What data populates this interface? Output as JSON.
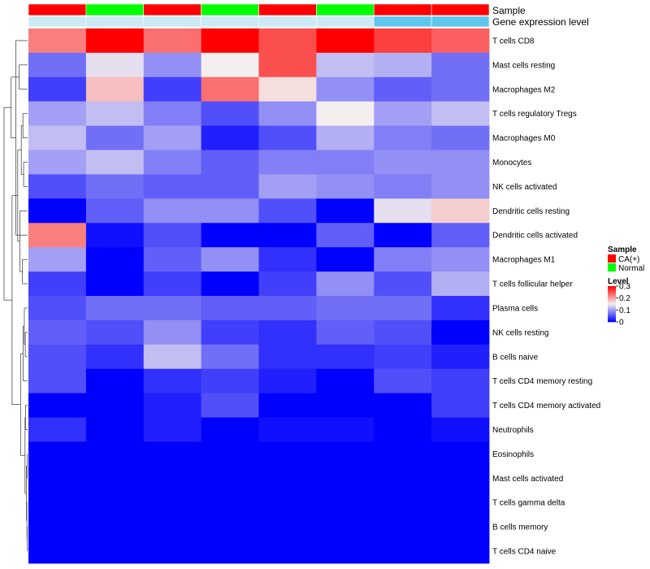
{
  "chart_data": {
    "type": "heatmap",
    "annotation_labels": [
      "Sample",
      "Gene expression level"
    ],
    "sample_groups": [
      "CA(+)",
      "Normal",
      "CA(+)",
      "Normal",
      "CA(+)",
      "Normal",
      "CA(+)",
      "CA(+)"
    ],
    "expression_level": [
      "low",
      "low",
      "low",
      "low",
      "low",
      "low",
      "high",
      "high"
    ],
    "rows": [
      "T cells CD8",
      "Mast cells resting",
      "Macrophages M2",
      "T cells regulatory  Tregs",
      "Macrophages M0",
      "Monocytes",
      "NK cells activated",
      "Dendritic cells resting",
      "Dendritic cells activated",
      "Macrophages M1",
      "T cells follicular helper",
      "Plasma cells",
      "NK cells resting",
      "B cells naive",
      "T cells CD4 memory resting",
      "T cells CD4 memory activated",
      "Neutrophils",
      "Eosinophils",
      "Mast cells activated",
      "T cells gamma delta",
      "B cells memory",
      "T cells CD4 naive"
    ],
    "values": [
      [
        0.22,
        0.3,
        0.23,
        0.3,
        0.25,
        0.3,
        0.26,
        0.24
      ],
      [
        0.07,
        0.14,
        0.09,
        0.15,
        0.25,
        0.12,
        0.11,
        0.07
      ],
      [
        0.04,
        0.18,
        0.04,
        0.23,
        0.16,
        0.09,
        0.06,
        0.07
      ],
      [
        0.1,
        0.12,
        0.08,
        0.05,
        0.09,
        0.15,
        0.1,
        0.12
      ],
      [
        0.12,
        0.07,
        0.1,
        0.02,
        0.05,
        0.11,
        0.08,
        0.07
      ],
      [
        0.1,
        0.12,
        0.08,
        0.06,
        0.08,
        0.08,
        0.09,
        0.09
      ],
      [
        0.05,
        0.07,
        0.06,
        0.06,
        0.1,
        0.09,
        0.08,
        0.09
      ],
      [
        0.0,
        0.06,
        0.09,
        0.09,
        0.05,
        0.0,
        0.14,
        0.17
      ],
      [
        0.22,
        0.01,
        0.05,
        0.0,
        0.0,
        0.06,
        0.0,
        0.06
      ],
      [
        0.1,
        0.0,
        0.06,
        0.09,
        0.03,
        0.0,
        0.08,
        0.09
      ],
      [
        0.04,
        0.0,
        0.04,
        0.0,
        0.04,
        0.09,
        0.05,
        0.11
      ],
      [
        0.05,
        0.07,
        0.07,
        0.06,
        0.06,
        0.07,
        0.07,
        0.03
      ],
      [
        0.06,
        0.05,
        0.09,
        0.04,
        0.03,
        0.06,
        0.05,
        0.0
      ],
      [
        0.05,
        0.03,
        0.12,
        0.07,
        0.03,
        0.03,
        0.04,
        0.02
      ],
      [
        0.05,
        0.0,
        0.03,
        0.04,
        0.02,
        0.0,
        0.05,
        0.04
      ],
      [
        0.0,
        0.0,
        0.02,
        0.05,
        0.0,
        0.0,
        0.0,
        0.04
      ],
      [
        0.03,
        0.0,
        0.02,
        0.0,
        0.01,
        0.01,
        0.0,
        0.01
      ],
      [
        0.0,
        0.0,
        0.0,
        0.0,
        0.0,
        0.0,
        0.0,
        0.0
      ],
      [
        0.0,
        0.0,
        0.0,
        0.0,
        0.0,
        0.0,
        0.0,
        0.0
      ],
      [
        0.0,
        0.0,
        0.0,
        0.0,
        0.0,
        0.0,
        0.0,
        0.0
      ],
      [
        0.0,
        0.0,
        0.0,
        0.0,
        0.0,
        0.0,
        0.0,
        0.0
      ],
      [
        0.0,
        0.0,
        0.0,
        0.0,
        0.0,
        0.0,
        0.0,
        0.0
      ]
    ],
    "color_scale": {
      "min": 0,
      "mid": 0.15,
      "max": 0.3,
      "low_color": "#0000ff",
      "mid_color": "#f4eeee",
      "high_color": "#ff0000"
    },
    "legend": {
      "sample_title": "Sample",
      "sample_entries": [
        {
          "label": "CA(+)",
          "color": "#ff0000"
        },
        {
          "label": "Normal",
          "color": "#00ff00"
        }
      ],
      "level_title": "Level",
      "level_ticks": [
        "0.3",
        "0.2",
        "0.1",
        "0"
      ],
      "placement": "right"
    },
    "group_colors": {
      "CA(+)": "#ff0000",
      "Normal": "#00ff00"
    },
    "expression_colors": {
      "low": "#cde9f5",
      "high": "#5ec6ec"
    },
    "row_dendrogram": true
  }
}
